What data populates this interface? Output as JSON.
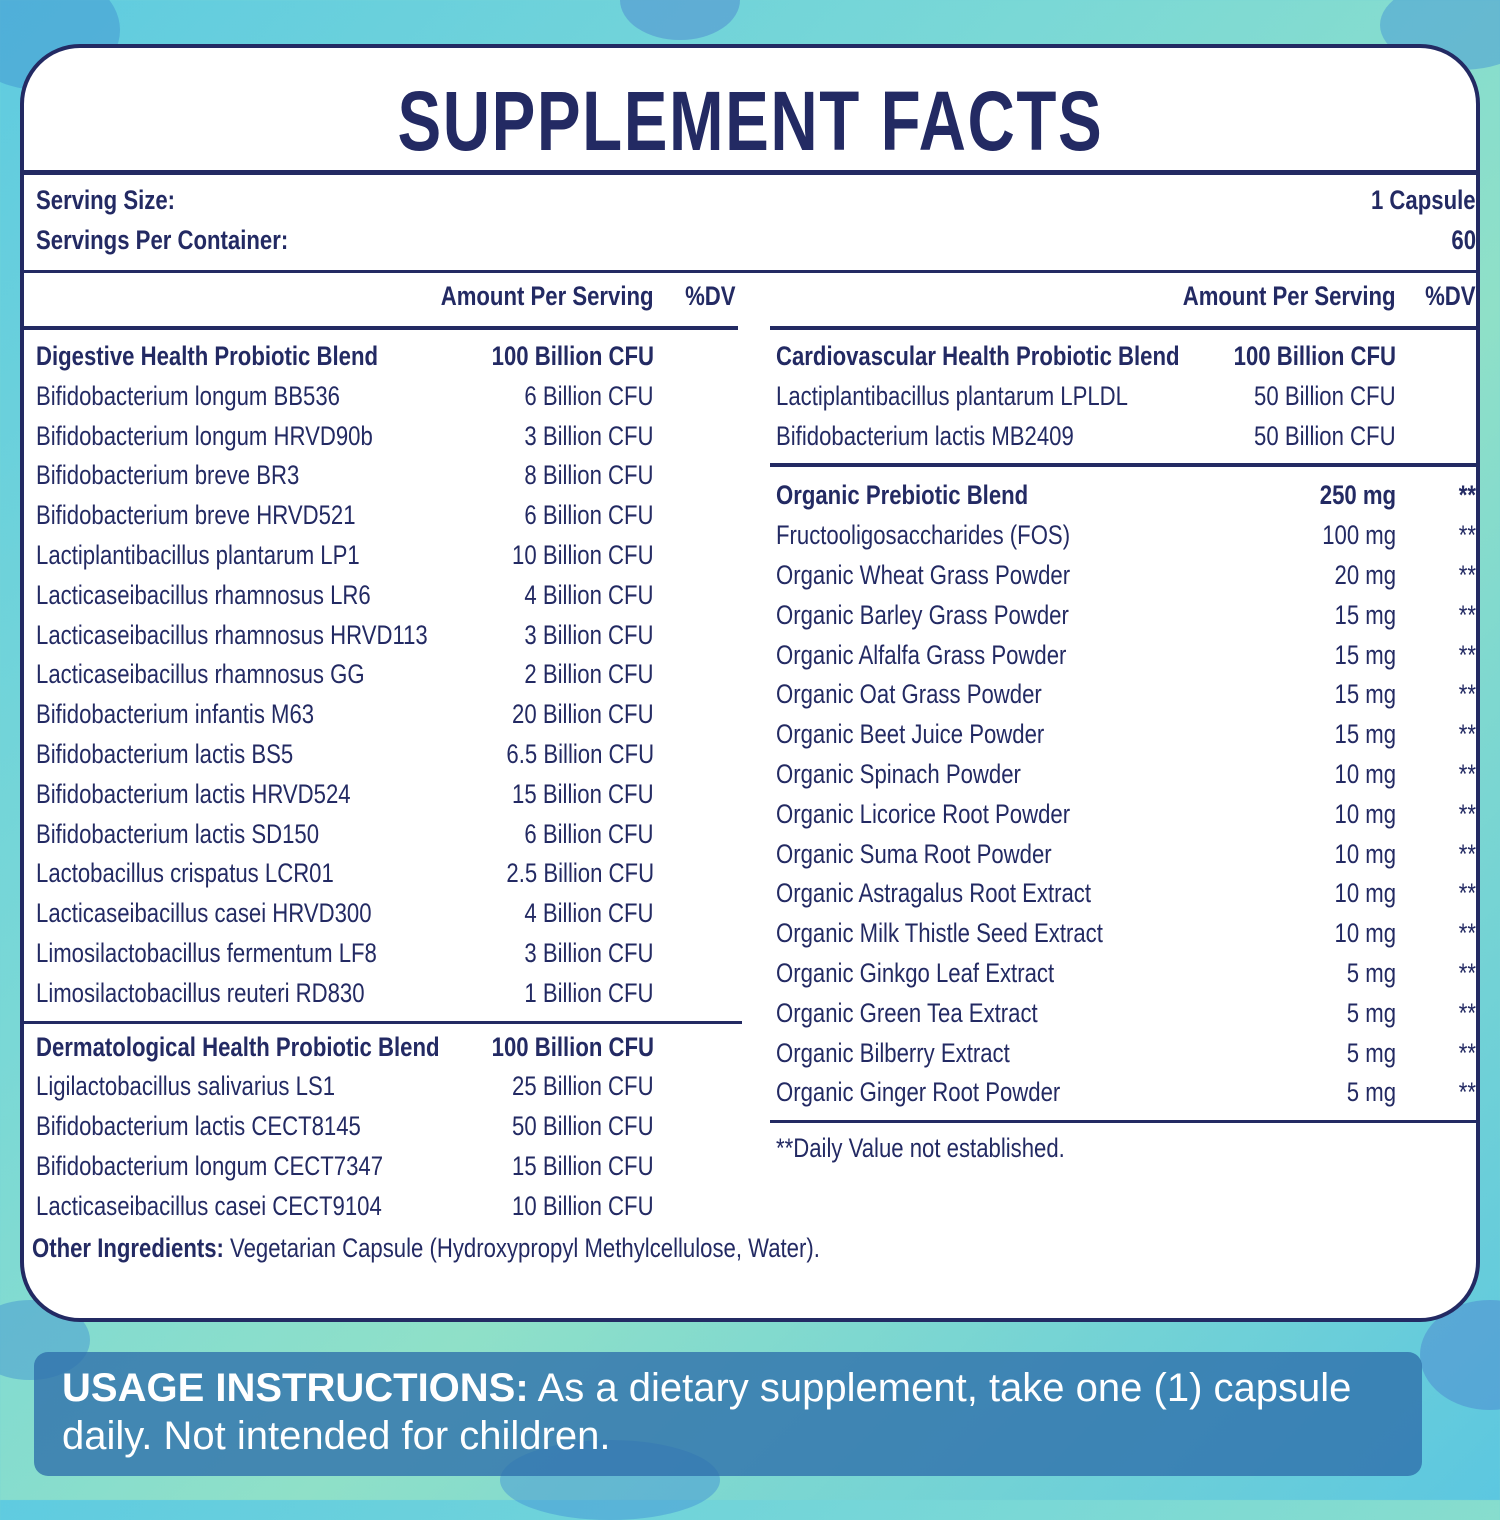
{
  "title": "SUPPLEMENT FACTS",
  "serving": {
    "size_label": "Serving Size:",
    "size_value": "1 Capsule",
    "per_container_label": "Servings Per Container:",
    "per_container_value": "60"
  },
  "headers": {
    "amount": "Amount Per Serving",
    "dv": "%DV"
  },
  "left_blends": [
    {
      "name": "Digestive Health Probiotic Blend",
      "amount": "100 Billion CFU",
      "items": [
        {
          "name": "Bifidobacterium longum BB536",
          "amount": "6 Billion CFU"
        },
        {
          "name": "Bifidobacterium longum  HRVD90b",
          "amount": "3 Billion CFU"
        },
        {
          "name": "Bifidobacterium breve BR3",
          "amount": "8 Billion CFU"
        },
        {
          "name": "Bifidobacterium breve HRVD521",
          "amount": "6 Billion CFU"
        },
        {
          "name": "Lactiplantibacillus plantarum LP1",
          "amount": "10 Billion CFU"
        },
        {
          "name": "Lacticaseibacillus rhamnosus  LR6",
          "amount": "4 Billion CFU"
        },
        {
          "name": "Lacticaseibacillus rhamnosus HRVD113",
          "amount": "3 Billion CFU"
        },
        {
          "name": "Lacticaseibacillus rhamnosus GG",
          "amount": "2 Billion CFU"
        },
        {
          "name": "Bifidobacterium infantis M63",
          "amount": "20 Billion CFU"
        },
        {
          "name": "Bifidobacterium lactis  BS5",
          "amount": "6.5 Billion CFU"
        },
        {
          "name": "Bifidobacterium lactis  HRVD524",
          "amount": "15 Billion CFU"
        },
        {
          "name": "Bifidobacterium lactis SD150",
          "amount": "6 Billion CFU"
        },
        {
          "name": "Lactobacillus crispatus LCR01",
          "amount": "2.5 Billion CFU"
        },
        {
          "name": "Lacticaseibacillus casei HRVD300",
          "amount": "4 Billion CFU"
        },
        {
          "name": "Limosilactobacillus fermentum LF8",
          "amount": "3 Billion CFU"
        },
        {
          "name": "Limosilactobacillus reuteri RD830",
          "amount": "1 Billion CFU"
        }
      ]
    },
    {
      "name": "Dermatological Health Probiotic Blend",
      "amount": "100 Billion CFU",
      "items": [
        {
          "name": "Ligilactobacillus salivarius LS1",
          "amount": "25 Billion CFU"
        },
        {
          "name": "Bifidobacterium lactis CECT8145",
          "amount": "50 Billion CFU"
        },
        {
          "name": "Bifidobacterium longum CECT7347",
          "amount": "15 Billion CFU"
        },
        {
          "name": "Lacticaseibacillus casei CECT9104",
          "amount": "10 Billion CFU"
        }
      ]
    }
  ],
  "cardio_blend": {
    "name": "Cardiovascular Health Probiotic Blend",
    "amount": "100 Billion CFU",
    "items": [
      {
        "name": "Lactiplantibacillus plantarum LPLDL",
        "amount": "50 Billion CFU"
      },
      {
        "name": "Bifidobacterium lactis MB2409",
        "amount": "50 Billion CFU"
      }
    ]
  },
  "prebiotic_blend": {
    "name": "Organic Prebiotic Blend",
    "amount": "250 mg",
    "dv": "**",
    "items": [
      {
        "name": "Fructooligosaccharides (FOS)",
        "amount": "100 mg",
        "dv": "**"
      },
      {
        "name": "Organic Wheat Grass Powder",
        "amount": "20 mg",
        "dv": "**"
      },
      {
        "name": "Organic Barley Grass Powder",
        "amount": "15 mg",
        "dv": "**"
      },
      {
        "name": "Organic Alfalfa Grass Powder",
        "amount": "15 mg",
        "dv": "**"
      },
      {
        "name": "Organic Oat Grass Powder",
        "amount": "15 mg",
        "dv": "**"
      },
      {
        "name": "Organic Beet Juice Powder",
        "amount": "15 mg",
        "dv": "**"
      },
      {
        "name": "Organic Spinach Powder",
        "amount": "10 mg",
        "dv": "**"
      },
      {
        "name": "Organic Licorice Root Powder",
        "amount": "10 mg",
        "dv": "**"
      },
      {
        "name": "Organic Suma Root Powder",
        "amount": "10 mg",
        "dv": "**"
      },
      {
        "name": "Organic Astragalus Root Extract",
        "amount": "10 mg",
        "dv": "**"
      },
      {
        "name": "Organic Milk Thistle Seed Extract",
        "amount": "10 mg",
        "dv": "**"
      },
      {
        "name": "Organic Ginkgo Leaf Extract",
        "amount": "5 mg",
        "dv": "**"
      },
      {
        "name": "Organic Green Tea Extract",
        "amount": "5 mg",
        "dv": "**"
      },
      {
        "name": "Organic Bilberry Extract",
        "amount": "5 mg",
        "dv": "**"
      },
      {
        "name": "Organic Ginger Root Powder",
        "amount": "5 mg",
        "dv": "**"
      }
    ]
  },
  "footnote": "**Daily Value not established.",
  "other_ingredients": {
    "label": "Other Ingredients:",
    "text": " Vegetarian Capsule (Hydroxypropyl Methylcellulose, Water)."
  },
  "usage": {
    "label": "USAGE INSTRUCTIONS:",
    "text": " As a dietary supplement, take one (1) capsule daily. Not intended for children."
  },
  "colors": {
    "navy": "#232a63",
    "usage_bg": "#2e6eaa"
  }
}
